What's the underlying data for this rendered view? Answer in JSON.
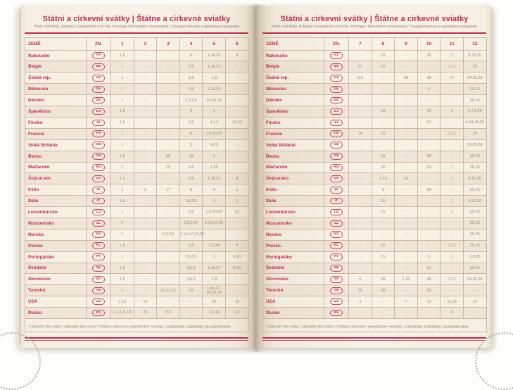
{
  "accent_color": "#c22a54",
  "pages": [
    {
      "title": "Státní a církevní svátky | Štátne a cirkevné sviatky",
      "subtitle": "Public and Relig. Holidays | Gesetzliche und relig. Feiertage | Nemzetközi ünnepnapok | Государственные и церковные праздники",
      "columns": [
        "ZEMĚ",
        "ZN.",
        "1",
        "2",
        "3",
        "4",
        "5",
        "6"
      ],
      "footnote": "* náhradní den volna / náhradný deň voľna / holidays observed / gesetzlicher Feiertag / szabadnapi szabadság / выходной день",
      "rows": [
        {
          "country": "Rakousko",
          "code": "AT",
          "months": [
            "1,6",
            "-",
            "-",
            "6",
            "1,14,25",
            "4"
          ]
        },
        {
          "country": "Belgie",
          "code": "BE",
          "months": [
            "1",
            "-",
            "-",
            "3,6",
            "1,14,25",
            "-"
          ]
        },
        {
          "country": "Česká rep.",
          "code": "CZ",
          "months": [
            "1",
            "-",
            "-",
            "3,6",
            "1,8",
            "-"
          ]
        },
        {
          "country": "Německo",
          "code": "DE",
          "months": [
            "1",
            "-",
            "-",
            "3,6",
            "1,14,25",
            "-"
          ]
        },
        {
          "country": "Dánsko",
          "code": "DK",
          "months": [
            "1",
            "-",
            "-",
            "2,3,5,6",
            "14,24,25",
            "-"
          ]
        },
        {
          "country": "Španělsko",
          "code": "ES",
          "months": [
            "1,6",
            "-",
            "-",
            "3",
            "1",
            "-"
          ]
        },
        {
          "country": "Finsko",
          "code": "FI",
          "months": [
            "1,6",
            "-",
            "-",
            "3,6",
            "1,14",
            "19,20"
          ]
        },
        {
          "country": "Francie",
          "code": "FR",
          "months": [
            "1",
            "-",
            "-",
            "6",
            "1,8,14,25",
            "-"
          ]
        },
        {
          "country": "Velká Británie",
          "code": "GB",
          "months": [
            "1",
            "-",
            "-",
            "3",
            "4,25",
            "-"
          ]
        },
        {
          "country": "Řecko",
          "code": "GR",
          "months": [
            "1,6",
            "-",
            "25",
            "13",
            "1",
            "-"
          ]
        },
        {
          "country": "Maďarsko",
          "code": "HU",
          "months": [
            "1",
            "-",
            "15",
            "3,6",
            "1,25",
            "-"
          ]
        },
        {
          "country": "Švýcarsko",
          "code": "CH",
          "months": [
            "1,2",
            "-",
            "-",
            "3,6",
            "1,14,25",
            "4"
          ]
        },
        {
          "country": "Irsko",
          "code": "IE",
          "months": [
            "1",
            "2",
            "17",
            "6",
            "4",
            "1"
          ]
        },
        {
          "country": "Itálie",
          "code": "IT",
          "months": [
            "1,6",
            "-",
            "-",
            "5,6,25",
            "1",
            "2"
          ]
        },
        {
          "country": "Lucembursko",
          "code": "LU",
          "months": [
            "1",
            "-",
            "-",
            "3,6",
            "1,9,14,25",
            "23"
          ]
        },
        {
          "country": "Nizozemsko",
          "code": "NL",
          "months": [
            "1",
            "-",
            "-",
            "3,5,6,27",
            "5,14,24,25",
            "-"
          ]
        },
        {
          "country": "Norsko",
          "code": "NO",
          "months": [
            "1",
            "-",
            "2,3,5,6",
            "1,14,17,24,25",
            "-",
            "-"
          ]
        },
        {
          "country": "Polsko",
          "code": "PL",
          "months": [
            "1,6",
            "-",
            "-",
            "5,6",
            "1,3,24",
            "4"
          ]
        },
        {
          "country": "Portugalsko",
          "code": "PT",
          "months": [
            "1",
            "-",
            "-",
            "3,5,25",
            "1",
            "4,10"
          ]
        },
        {
          "country": "Švédsko",
          "code": "SE",
          "months": [
            "1,6",
            "-",
            "-",
            "3,5,6",
            "1,14,24",
            "6,20"
          ]
        },
        {
          "country": "Slovensko",
          "code": "SK",
          "months": [
            "1,6",
            "-",
            "-",
            "3,5,6",
            "1,8",
            "-"
          ]
        },
        {
          "country": "Turecko",
          "code": "TR",
          "months": [
            "1",
            "-",
            "20,21,22",
            "23",
            "1,19,27, 28,29,30",
            "-"
          ]
        },
        {
          "country": "USA",
          "code": "US",
          "months": [
            "1,19",
            "16",
            "-",
            "-",
            "25",
            "19"
          ]
        },
        {
          "country": "Rusko",
          "code": "РУ",
          "months": [
            "1,2,5,6,7,8",
            "23",
            "8,9",
            "-",
            "1,9,11",
            "12"
          ]
        }
      ]
    },
    {
      "title": "Státní a církevní svátky | Štátne a cirkevné sviatky",
      "subtitle": "Public and Relig. Holidays | Gesetzliche und relig. Feiertage | Nemzetközi ünnepnapok | Государственные и церковные праздники",
      "columns": [
        "ZEMĚ",
        "ZN.",
        "7",
        "8",
        "9",
        "10",
        "11",
        "12"
      ],
      "footnote": "* náhradní den volna / náhradný deň voľna / holidays observed / gesetzlicher Feiertag / szabadnapi szabadság / выходной день",
      "rows": [
        {
          "country": "Rakousko",
          "code": "AT",
          "months": [
            "-",
            "15",
            "-",
            "26",
            "1",
            "8,25,26"
          ]
        },
        {
          "country": "Belgie",
          "code": "BE",
          "months": [
            "21",
            "15",
            "-",
            "-",
            "1,11",
            "25"
          ]
        },
        {
          "country": "Česká rep.",
          "code": "CZ",
          "months": [
            "5,6",
            "-",
            "28",
            "28",
            "17",
            "24,25,26"
          ]
        },
        {
          "country": "Německo",
          "code": "DE",
          "months": [
            "-",
            "-",
            "-",
            "3",
            "-",
            "25,26"
          ]
        },
        {
          "country": "Dánsko",
          "code": "DK",
          "months": [
            "-",
            "-",
            "-",
            "-",
            "-",
            "25,26"
          ]
        },
        {
          "country": "Španělsko",
          "code": "ES",
          "months": [
            "-",
            "15",
            "-",
            "12",
            "1",
            "6,7,8,25"
          ]
        },
        {
          "country": "Finsko",
          "code": "FI",
          "months": [
            "-",
            "-",
            "-",
            "31",
            "-",
            "6,24,25,26"
          ]
        },
        {
          "country": "Francie",
          "code": "FR",
          "months": [
            "14",
            "15",
            "-",
            "-",
            "1,11",
            "25"
          ]
        },
        {
          "country": "Velká Británie",
          "code": "GB",
          "months": [
            "-",
            "-",
            "-",
            "-",
            "-",
            "25,26,28"
          ]
        },
        {
          "country": "Řecko",
          "code": "GR",
          "months": [
            "-",
            "15",
            "-",
            "28",
            "-",
            "25,26"
          ]
        },
        {
          "country": "Maďarsko",
          "code": "HU",
          "months": [
            "-",
            "20",
            "-",
            "23",
            "1",
            "25,26"
          ]
        },
        {
          "country": "Švýcarsko",
          "code": "CH",
          "months": [
            "-",
            "1,15",
            "20",
            "-",
            "1",
            "8,25,26"
          ]
        },
        {
          "country": "Irsko",
          "code": "IE",
          "months": [
            "-",
            "3",
            "-",
            "26",
            "-",
            "25,26"
          ]
        },
        {
          "country": "Itálie",
          "code": "IT",
          "months": [
            "-",
            "15",
            "-",
            "-",
            "1",
            "8,25,26"
          ]
        },
        {
          "country": "Lucembursko",
          "code": "LU",
          "months": [
            "-",
            "15",
            "-",
            "-",
            "1",
            "25,26"
          ]
        },
        {
          "country": "Nizozemsko",
          "code": "NL",
          "months": [
            "-",
            "-",
            "-",
            "-",
            "-",
            "25,26"
          ]
        },
        {
          "country": "Norsko",
          "code": "NO",
          "months": [
            "-",
            "-",
            "-",
            "-",
            "-",
            "25,26"
          ]
        },
        {
          "country": "Polsko",
          "code": "PL",
          "months": [
            "-",
            "15",
            "-",
            "-",
            "1,11",
            "25,26"
          ]
        },
        {
          "country": "Portugalsko",
          "code": "PT",
          "months": [
            "-",
            "15",
            "-",
            "5",
            "1",
            "1,8,25"
          ]
        },
        {
          "country": "Švédsko",
          "code": "SE",
          "months": [
            "-",
            "-",
            "-",
            "31",
            "-",
            "25,26"
          ]
        },
        {
          "country": "Slovensko",
          "code": "SK",
          "months": [
            "5",
            "29",
            "1,15",
            "28",
            "1,17",
            "24,25,26"
          ]
        },
        {
          "country": "Turecko",
          "code": "TR",
          "months": [
            "15",
            "30",
            "-",
            "29",
            "-",
            "-"
          ]
        },
        {
          "country": "USA",
          "code": "US",
          "months": [
            "3",
            "-",
            "7",
            "12",
            "11,26",
            "25"
          ]
        },
        {
          "country": "Rusko",
          "code": "РУ",
          "months": [
            "-",
            "-",
            "-",
            "-",
            "4",
            "-"
          ]
        }
      ]
    }
  ]
}
